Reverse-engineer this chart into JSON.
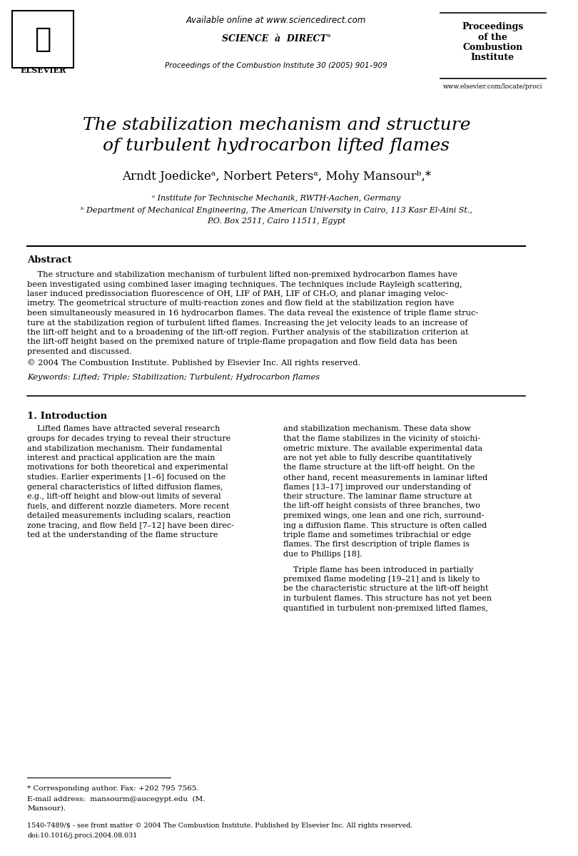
{
  "bg_color": "#ffffff",
  "title_line1": "The stabilization mechanism and structure",
  "title_line2": "of turbulent hydrocarbon lifted flames",
  "authors": "Arndt Joedickeᵃ, Norbert Petersᵃ, Mohy Mansourᵇ,*",
  "affil_a": "ᵃ Institute for Technische Mechanik, RWTH-Aachen, Germany",
  "affil_b": "ᵇ Department of Mechanical Engineering, The American University in Cairo, 113 Kasr El-Aini St.,",
  "affil_b2": "P.O. Box 2511, Cairo 11511, Egypt",
  "header_center_line1": "Available online at www.sciencedirect.com",
  "header_center_line2": "SCIENCE à DIRECT°",
  "header_center_line3": "Proceedings of the Combustion Institute 30 (2005) 901–909",
  "header_right_line1": "Proceedings",
  "header_right_line2": "of the",
  "header_right_line3": "Combustion",
  "header_right_line4": "Institute",
  "header_right_line5": "www.elsevier.com/locate/proci",
  "header_left_text": "ELSEVIER",
  "abstract_title": "Abstract",
  "abstract_body": "    The structure and stabilization mechanism of turbulent lifted non-premixed hydrocarbon flames have\nbeen investigated using combined laser imaging techniques. The techniques include Rayleigh scattering,\nlaser induced predissociation fluorescence of OH, LIF of PAH, LIF of CH₂O, and planar imaging veloc-\nimetry. The geometrical structure of multi-reaction zones and flow field at the stabilization region have\nbeen simultaneously measured in 16 hydrocarbon flames. The data reveal the existence of triple flame struc-\nture at the stabilization region of turbulent lifted flames. Increasing the jet velocity leads to an increase of\nthe lift-off height and to a broadening of the lift-off region. Further analysis of the stabilization criterion at\nthe lift-off height based on the premixed nature of triple-flame propagation and flow field data has been\npresented and discussed.",
  "copyright": "© 2004 The Combustion Institute. Published by Elsevier Inc. All rights reserved.",
  "keywords": "Keywords: Lifted; Triple; Stabilization; Turbulent; Hydrocarbon flames",
  "section1_title": "1. Introduction",
  "section1_col1": "    Lifted flames have attracted several research\ngroups for decades trying to reveal their structure\nand stabilization mechanism. Their fundamental\ninterest and practical application are the main\nmotivations for both theoretical and experimental\nstudies. Earlier experiments [1–6] focused on the\ngeneral characteristics of lifted diffusion flames,\ne.g., lift-off height and blow-out limits of several\nfuels, and different nozzle diameters. More recent\ndetailed measurements including scalars, reaction\nzone tracing, and flow field [7–12] have been direc-\nted at the understanding of the flame structure",
  "section1_col2": "and stabilization mechanism. These data show\nthat the flame stabilizes in the vicinity of stoichi-\nometric mixture. The available experimental data\nare not yet able to fully describe quantitatively\nthe flame structure at the lift-off height. On the\nother hand, recent measurements in laminar lifted\nflames [13–17] improved our understanding of\ntheir structure. The laminar flame structure at\nthe lift-off height consists of three branches, two\npremixed wings, one lean and one rich, surround-\ning a diffusion flame. This structure is often called\ntriple flame and sometimes tribrachial or edge\nflames. The first description of triple flames is\ndue to Phillips [18].",
  "section1_col2_para2": "    Triple flame has been introduced in partially\npremixed flame modeling [19–21] and is likely to\nbe the characteristic structure at the lift-off height\nin turbulent flames. This structure has not yet been\nquantified in turbulent non-premixed lifted flames,",
  "footnote_star": "* Corresponding author. Fax: +202 795 7565.",
  "footnote_email": "E-mail address: mansourm@aucegypt.edu (M.\nMansour).",
  "footer_line1": "1540-7489/$ - see front matter © 2004 The Combustion Institute. Published by Elsevier Inc. All rights reserved.",
  "footer_line2": "doi:10.1016/j.proci.2004.08.031"
}
